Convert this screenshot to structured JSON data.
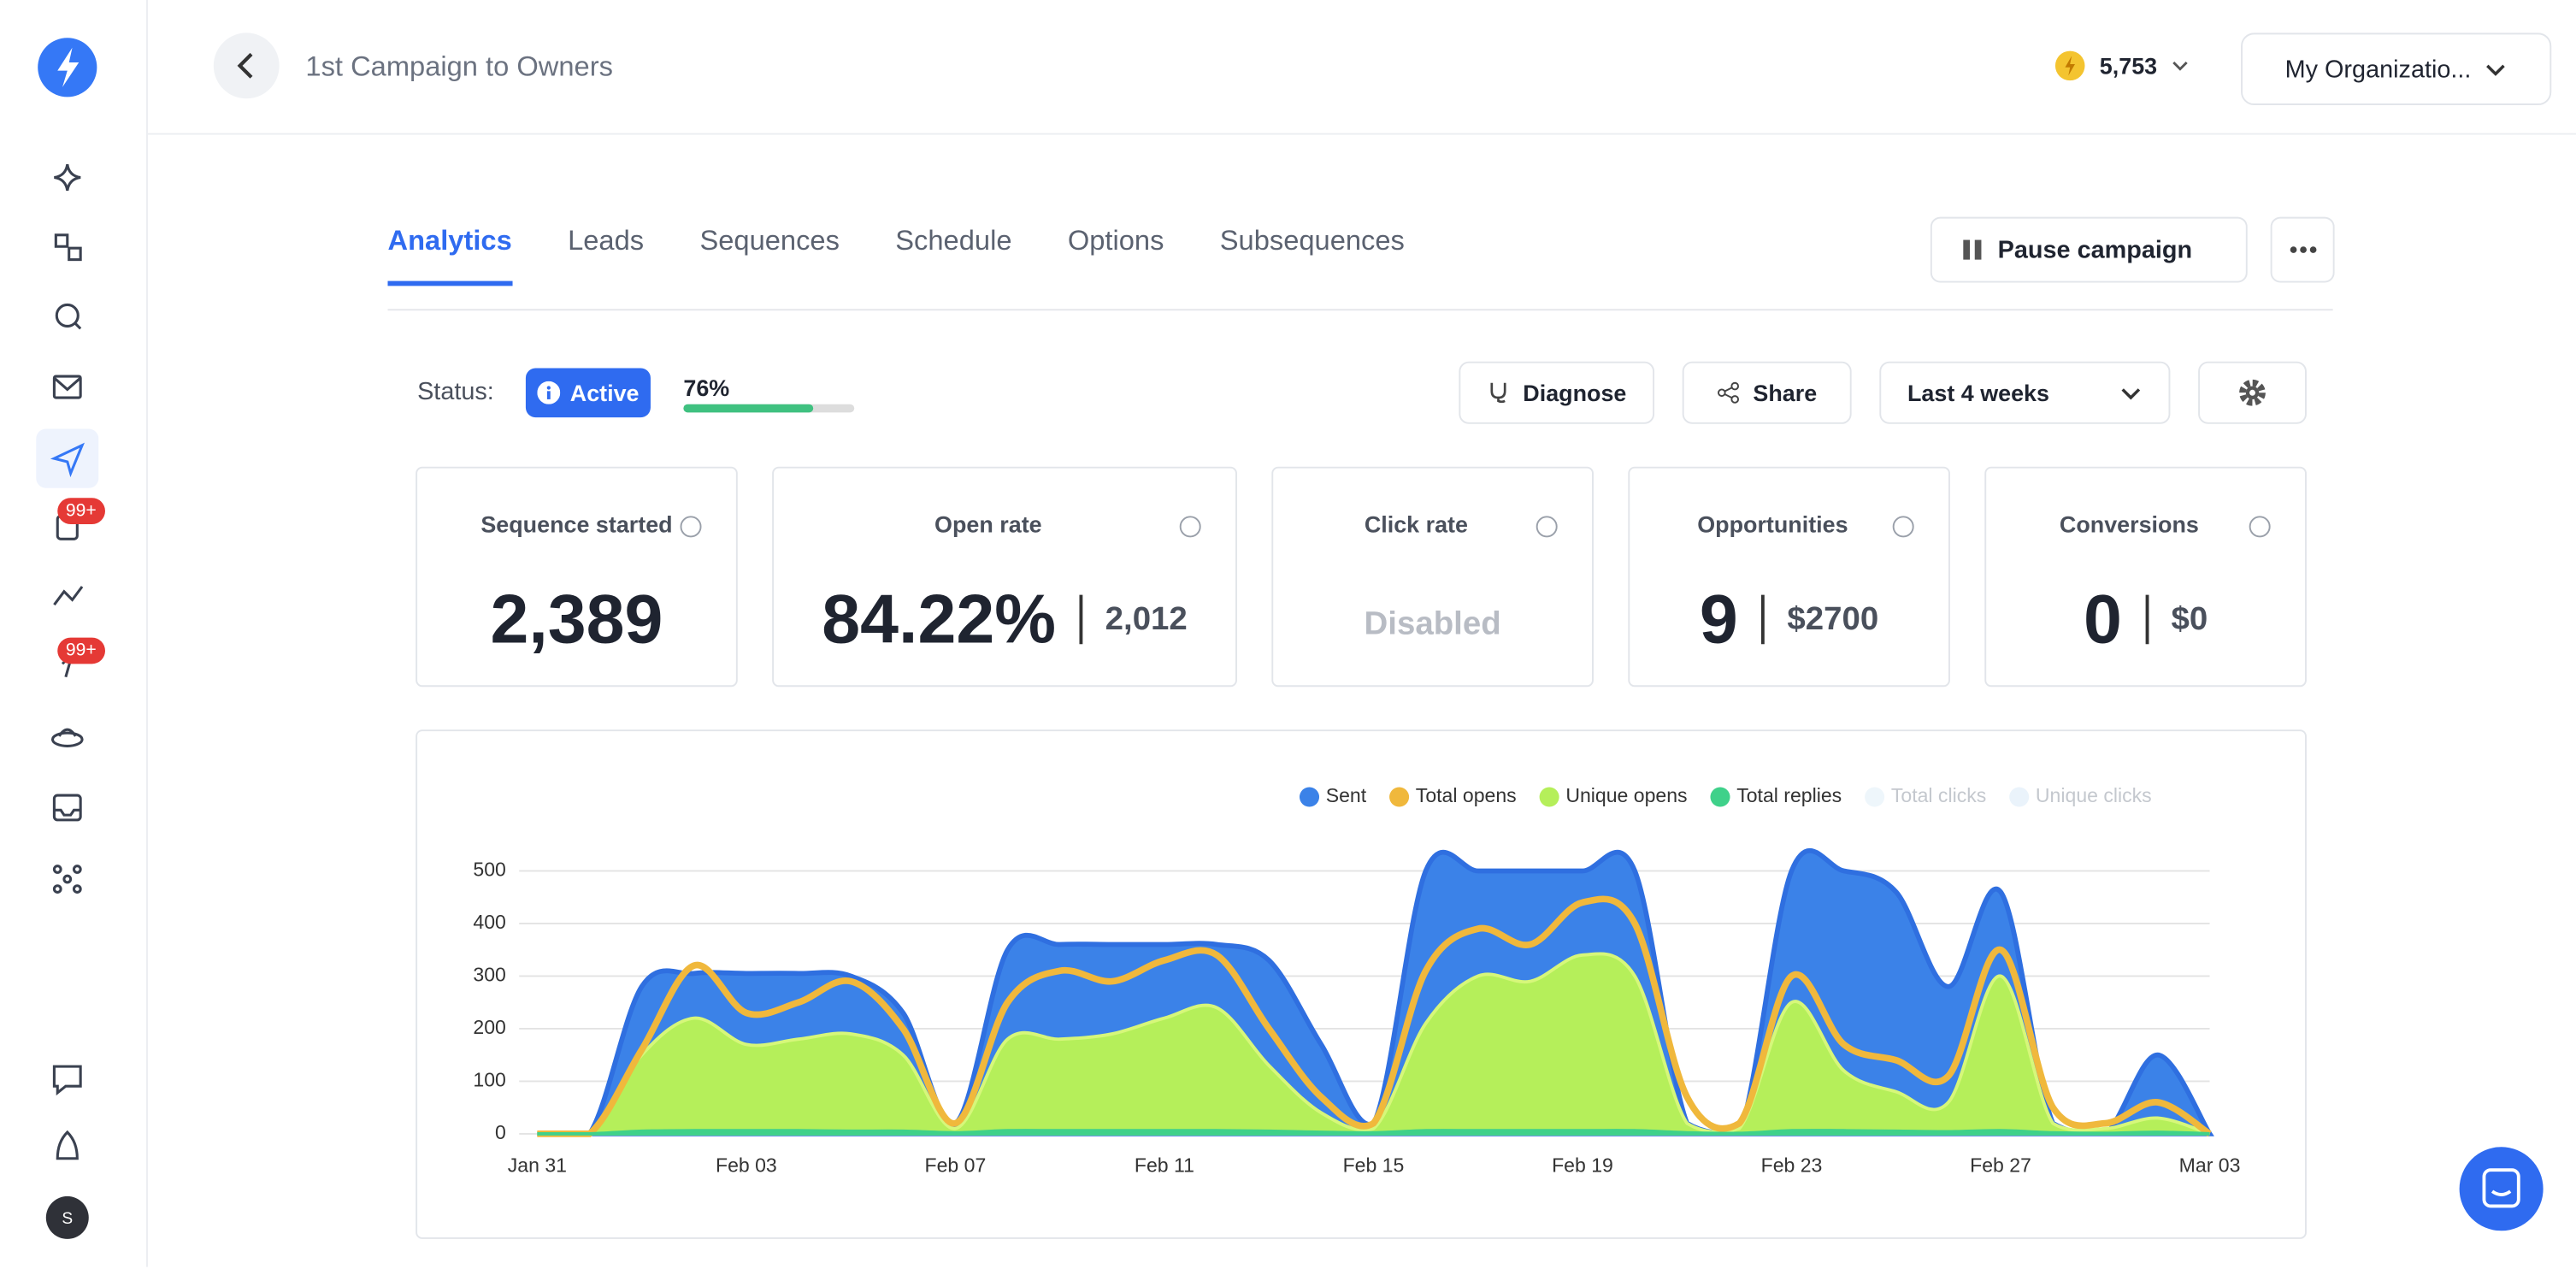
{
  "header": {
    "campaign": "1st Campaign to Owners",
    "credits": "5,753",
    "organization": "My Organizatio..."
  },
  "sidebar": {
    "badges": [
      "99+",
      "99+"
    ],
    "avatar": "S"
  },
  "tabs": [
    "Analytics",
    "Leads",
    "Sequences",
    "Schedule",
    "Options",
    "Subsequences"
  ],
  "actions": {
    "pause": "Pause campaign",
    "diagnose": "Diagnose",
    "share": "Share",
    "range": "Last 4 weeks"
  },
  "status": {
    "label": "Status:",
    "state": "Active",
    "progress": 76,
    "progress_label": "76%"
  },
  "cards": [
    {
      "title": "Sequence started",
      "value": "2,389"
    },
    {
      "title": "Open rate",
      "value": "84.22%",
      "secondary": "2,012"
    },
    {
      "title": "Click rate",
      "value": "Disabled"
    },
    {
      "title": "Opportunities",
      "value": "9",
      "secondary": "$2700"
    },
    {
      "title": "Conversions",
      "value": "0",
      "secondary": "$0"
    }
  ],
  "chart_data": {
    "type": "area",
    "categories": [
      "Jan 31",
      null,
      null,
      null,
      "Feb 03",
      null,
      null,
      null,
      "Feb 07",
      null,
      null,
      null,
      "Feb 11",
      null,
      null,
      null,
      "Feb 15",
      null,
      null,
      null,
      "Feb 19",
      null,
      null,
      null,
      "Feb 23",
      null,
      null,
      null,
      "Feb 27",
      null,
      null,
      null,
      "Mar 03"
    ],
    "series": [
      {
        "name": "Sent",
        "color": "#3b82e8",
        "values": [
          0,
          0,
          280,
          305,
          305,
          305,
          300,
          230,
          20,
          350,
          360,
          360,
          360,
          360,
          330,
          170,
          20,
          500,
          500,
          500,
          500,
          500,
          20,
          0,
          500,
          500,
          460,
          280,
          460,
          20,
          0,
          150,
          0
        ]
      },
      {
        "name": "Total opens",
        "color": "#f0b83c",
        "values": [
          0,
          0,
          160,
          320,
          230,
          250,
          290,
          200,
          20,
          250,
          310,
          290,
          330,
          340,
          200,
          70,
          20,
          310,
          390,
          360,
          440,
          400,
          70,
          20,
          300,
          170,
          140,
          110,
          350,
          50,
          20,
          60,
          0
        ]
      },
      {
        "name": "Unique opens",
        "color": "#b5ef5a",
        "values": [
          0,
          0,
          150,
          220,
          170,
          180,
          190,
          150,
          10,
          180,
          180,
          190,
          220,
          240,
          130,
          40,
          10,
          210,
          300,
          290,
          340,
          300,
          20,
          10,
          250,
          120,
          80,
          60,
          300,
          20,
          10,
          30,
          0
        ]
      },
      {
        "name": "Total replies",
        "color": "#3fd18a",
        "values": [
          0,
          0,
          5,
          6,
          6,
          6,
          5,
          5,
          2,
          6,
          6,
          6,
          6,
          6,
          5,
          3,
          2,
          6,
          6,
          6,
          6,
          6,
          2,
          1,
          6,
          6,
          5,
          4,
          6,
          2,
          1,
          3,
          0
        ]
      }
    ],
    "legend_extra": [
      {
        "name": "Total clicks",
        "color": "#eef6fb"
      },
      {
        "name": "Unique clicks",
        "color": "#eaf3fb"
      }
    ],
    "ylim": [
      0,
      500
    ],
    "yticks": [
      0,
      100,
      200,
      300,
      400,
      500
    ],
    "grid": true
  }
}
